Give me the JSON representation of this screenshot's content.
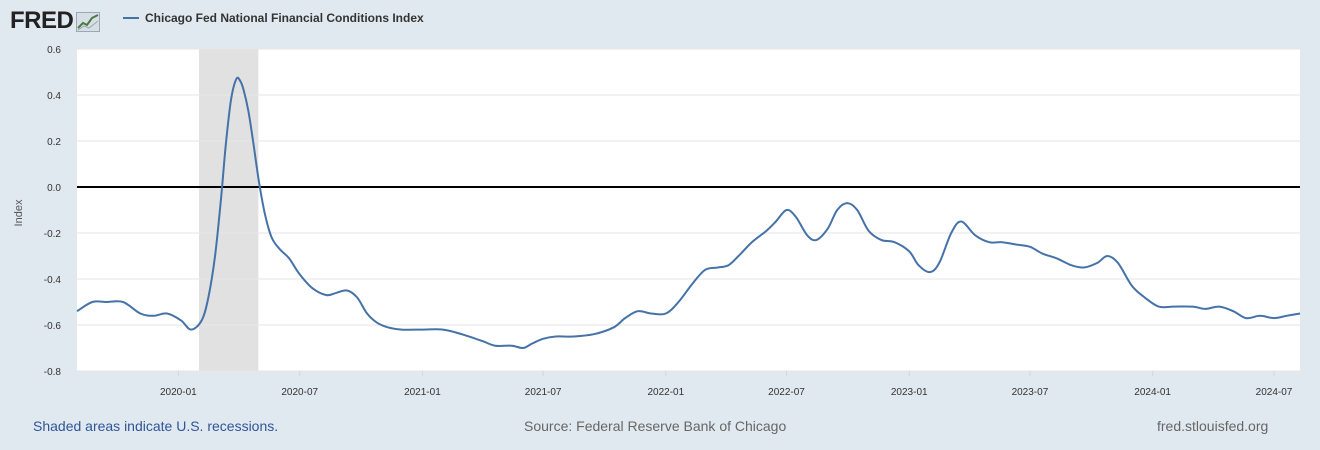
{
  "header": {
    "logo_text": "FRED",
    "legend_label": "Chicago Fed National Financial Conditions Index",
    "legend_color": "#4572a7"
  },
  "footer": {
    "recession_note": "Shaded areas indicate U.S. recessions.",
    "source": "Source: Federal Reserve Bank of Chicago",
    "site": "fred.stlouisfed.org"
  },
  "chart_data": {
    "type": "line",
    "title": "Chicago Fed National Financial Conditions Index",
    "xlabel": "",
    "ylabel": "Index",
    "ylim": [
      -0.8,
      0.6
    ],
    "yticks": [
      0.6,
      0.4,
      0.2,
      0.0,
      -0.2,
      -0.4,
      -0.6,
      -0.8
    ],
    "ytick_labels": [
      "0.6",
      "0.4",
      "0.2",
      "0.0",
      "-0.2",
      "-0.4",
      "-0.6",
      "-0.8"
    ],
    "xlim": [
      "2019-08-02",
      "2024-08-09"
    ],
    "xticks": [
      "2020-01",
      "2020-07",
      "2021-01",
      "2021-07",
      "2022-01",
      "2022-07",
      "2023-01",
      "2023-07",
      "2024-01",
      "2024-07"
    ],
    "recessions": [
      {
        "start": "2020-02-01",
        "end": "2020-04-30"
      }
    ],
    "line_color": "#4572a7",
    "zero_line_color": "#000000",
    "grid": true,
    "series": [
      {
        "name": "Chicago Fed National Financial Conditions Index",
        "x": [
          "2019-08-02",
          "2019-08-25",
          "2019-09-15",
          "2019-10-10",
          "2019-11-05",
          "2019-11-25",
          "2019-12-15",
          "2020-01-05",
          "2020-01-20",
          "2020-02-05",
          "2020-02-15",
          "2020-02-25",
          "2020-03-05",
          "2020-03-12",
          "2020-03-20",
          "2020-03-28",
          "2020-04-03",
          "2020-04-08",
          "2020-04-15",
          "2020-04-22",
          "2020-05-01",
          "2020-05-10",
          "2020-05-20",
          "2020-06-01",
          "2020-06-15",
          "2020-07-01",
          "2020-07-20",
          "2020-08-10",
          "2020-08-25",
          "2020-09-10",
          "2020-09-25",
          "2020-10-10",
          "2020-10-25",
          "2020-11-10",
          "2020-12-01",
          "2021-01-01",
          "2021-02-01",
          "2021-03-01",
          "2021-04-01",
          "2021-04-20",
          "2021-05-15",
          "2021-06-01",
          "2021-06-15",
          "2021-07-01",
          "2021-07-20",
          "2021-08-15",
          "2021-09-15",
          "2021-10-15",
          "2021-11-01",
          "2021-11-20",
          "2021-12-10",
          "2022-01-01",
          "2022-01-20",
          "2022-02-10",
          "2022-03-01",
          "2022-03-20",
          "2022-04-05",
          "2022-04-20",
          "2022-05-10",
          "2022-06-01",
          "2022-06-15",
          "2022-07-01",
          "2022-07-15",
          "2022-08-01",
          "2022-08-15",
          "2022-09-01",
          "2022-09-15",
          "2022-09-30",
          "2022-10-15",
          "2022-11-01",
          "2022-11-20",
          "2022-12-10",
          "2023-01-01",
          "2023-01-15",
          "2023-02-01",
          "2023-02-15",
          "2023-03-05",
          "2023-03-20",
          "2023-04-10",
          "2023-05-01",
          "2023-05-20",
          "2023-06-10",
          "2023-07-01",
          "2023-07-20",
          "2023-08-10",
          "2023-09-01",
          "2023-09-20",
          "2023-10-10",
          "2023-10-25",
          "2023-11-10",
          "2023-12-01",
          "2023-12-20",
          "2024-01-10",
          "2024-02-01",
          "2024-03-01",
          "2024-03-20",
          "2024-04-10",
          "2024-05-01",
          "2024-05-20",
          "2024-06-10",
          "2024-07-01",
          "2024-07-20",
          "2024-08-09"
        ],
        "y": [
          -0.54,
          -0.5,
          -0.5,
          -0.5,
          -0.55,
          -0.56,
          -0.55,
          -0.58,
          -0.62,
          -0.58,
          -0.48,
          -0.3,
          -0.05,
          0.18,
          0.38,
          0.47,
          0.46,
          0.42,
          0.33,
          0.2,
          0.02,
          -0.12,
          -0.22,
          -0.27,
          -0.31,
          -0.38,
          -0.44,
          -0.47,
          -0.46,
          -0.45,
          -0.48,
          -0.55,
          -0.59,
          -0.61,
          -0.62,
          -0.62,
          -0.62,
          -0.64,
          -0.67,
          -0.69,
          -0.69,
          -0.7,
          -0.68,
          -0.66,
          -0.65,
          -0.65,
          -0.64,
          -0.61,
          -0.57,
          -0.54,
          -0.55,
          -0.55,
          -0.5,
          -0.42,
          -0.36,
          -0.35,
          -0.34,
          -0.3,
          -0.24,
          -0.19,
          -0.15,
          -0.1,
          -0.13,
          -0.21,
          -0.23,
          -0.18,
          -0.1,
          -0.07,
          -0.1,
          -0.19,
          -0.23,
          -0.24,
          -0.28,
          -0.34,
          -0.37,
          -0.33,
          -0.2,
          -0.15,
          -0.21,
          -0.24,
          -0.24,
          -0.25,
          -0.26,
          -0.29,
          -0.31,
          -0.34,
          -0.35,
          -0.33,
          -0.3,
          -0.33,
          -0.43,
          -0.48,
          -0.52,
          -0.52,
          -0.52,
          -0.53,
          -0.52,
          -0.54,
          -0.57,
          -0.56,
          -0.57,
          -0.56,
          -0.55
        ]
      }
    ]
  }
}
